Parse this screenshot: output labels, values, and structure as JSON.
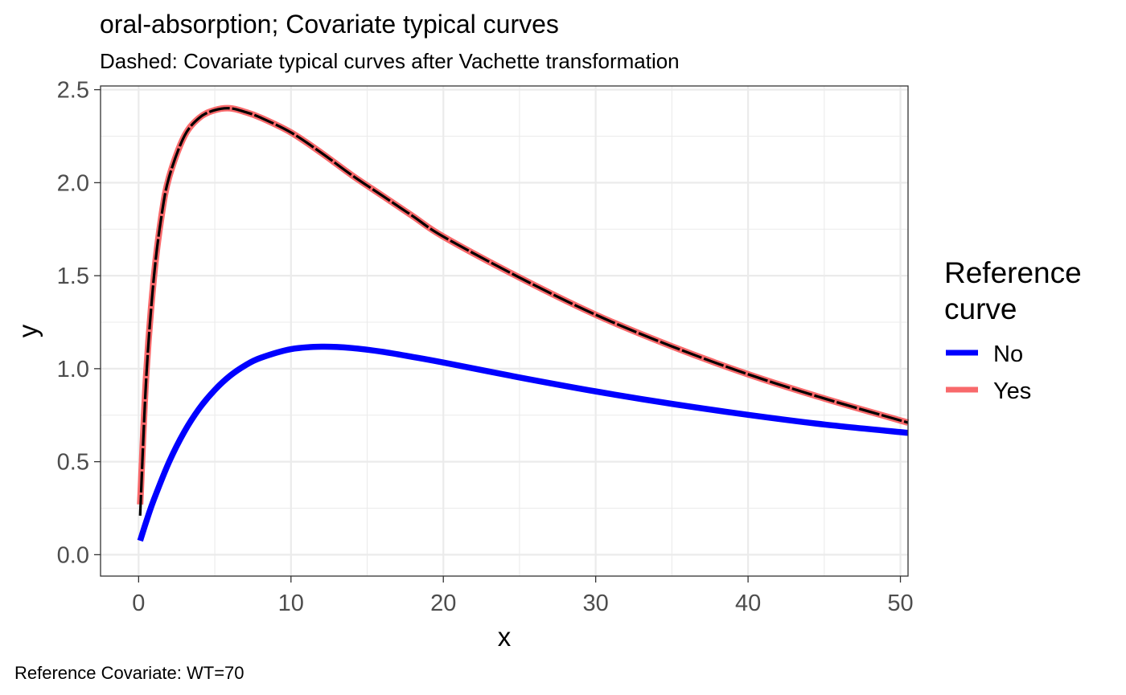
{
  "chart_data": {
    "type": "line",
    "title": "oral-absorption; Covariate typical curves",
    "subtitle": "Dashed: Covariate typical curves after Vachette transformation",
    "xlabel": "x",
    "ylabel": "y",
    "caption": "Reference Covariate: WT=70",
    "xlim": [
      -2.5,
      50.5
    ],
    "ylim": [
      -0.115,
      2.52
    ],
    "x_ticks": [
      0,
      10,
      20,
      30,
      40,
      50
    ],
    "x_tick_labels": [
      "0",
      "10",
      "20",
      "30",
      "40",
      "50"
    ],
    "y_ticks": [
      0.0,
      0.5,
      1.0,
      1.5,
      2.0,
      2.5
    ],
    "y_tick_labels": [
      "0.0",
      "0.5",
      "1.0",
      "1.5",
      "2.0",
      "2.5"
    ],
    "grid": true,
    "legend": {
      "title_lines": [
        "Reference",
        "curve"
      ],
      "placement": "right",
      "entries": [
        {
          "label": "No",
          "color": "#0000ff"
        },
        {
          "label": "Yes",
          "color": "#f8696b"
        }
      ]
    },
    "series": [
      {
        "name": "No",
        "color": "#0000ff",
        "style": "solid",
        "x": [
          0.1,
          0.5,
          1,
          2,
          3,
          4,
          5,
          6,
          7,
          8,
          10,
          12,
          14,
          16,
          18,
          20,
          25,
          30,
          35,
          40,
          45,
          50.5
        ],
        "y": [
          0.075,
          0.178,
          0.296,
          0.499,
          0.661,
          0.788,
          0.886,
          0.962,
          1.018,
          1.058,
          1.105,
          1.118,
          1.111,
          1.091,
          1.063,
          1.033,
          0.953,
          0.878,
          0.811,
          0.752,
          0.7,
          0.655
        ]
      },
      {
        "name": "Yes",
        "color": "#f8696b",
        "style": "solid",
        "x": [
          0.1,
          0.5,
          1,
          1.5,
          2,
          3,
          4,
          5,
          6,
          7,
          8,
          10,
          12,
          14,
          16,
          18,
          20,
          25,
          30,
          35,
          40,
          45,
          50.5
        ],
        "y": [
          0.27,
          0.97,
          1.49,
          1.82,
          2.03,
          2.25,
          2.35,
          2.39,
          2.4,
          2.38,
          2.35,
          2.27,
          2.16,
          2.04,
          1.93,
          1.82,
          1.71,
          1.49,
          1.29,
          1.12,
          0.97,
          0.84,
          0.71
        ]
      },
      {
        "name": "",
        "color": "#000000",
        "style": "dashed",
        "x": [
          0.1,
          0.5,
          1,
          1.5,
          2,
          3,
          4,
          5,
          6,
          7,
          8,
          10,
          12,
          14,
          16,
          18,
          20,
          25,
          30,
          35,
          40,
          45,
          50.5
        ],
        "y": [
          0.21,
          0.95,
          1.49,
          1.82,
          2.03,
          2.25,
          2.35,
          2.39,
          2.4,
          2.38,
          2.35,
          2.27,
          2.16,
          2.04,
          1.93,
          1.82,
          1.71,
          1.49,
          1.29,
          1.12,
          0.97,
          0.84,
          0.71
        ]
      }
    ]
  }
}
